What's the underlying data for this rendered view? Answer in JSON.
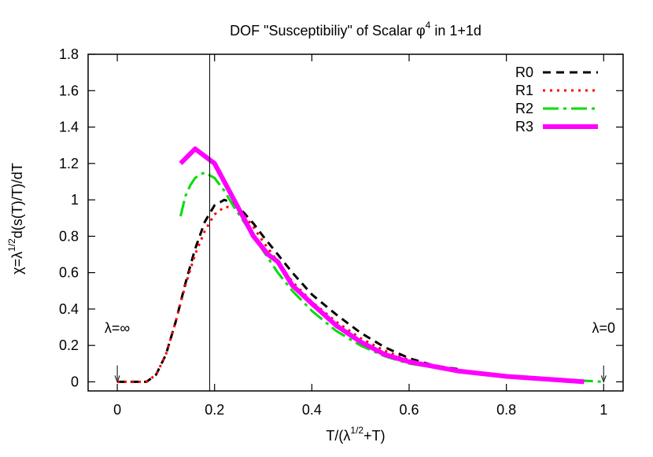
{
  "chart_data": {
    "type": "line",
    "title_parts": [
      "DOF \"Susceptibiliy\" of Scalar ",
      "φ",
      "4",
      " in 1+1d"
    ],
    "xlabel_parts": [
      "T/(λ",
      "1/2",
      "+T)"
    ],
    "ylabel_parts": [
      "χ=λ",
      "1/2",
      "d(s(T)/T)/dT"
    ],
    "xlim": [
      -0.06,
      1.04
    ],
    "ylim": [
      -0.05,
      1.8
    ],
    "xticks": [
      0,
      0.2,
      0.4,
      0.6,
      0.8,
      1
    ],
    "xtick_labels": [
      "0",
      "0.2",
      "0.4",
      "0.6",
      "0.8",
      "1"
    ],
    "yticks": [
      0,
      0.2,
      0.4,
      0.6,
      0.8,
      1,
      1.2,
      1.4,
      1.6,
      1.8
    ],
    "ytick_labels": [
      "0",
      "0.2",
      "0.4",
      "0.6",
      "0.8",
      "1",
      "1.2",
      "1.4",
      "1.6",
      "1.8"
    ],
    "vertical_line_x": 0.19,
    "annotations": [
      {
        "label": "λ=∞",
        "x": 0,
        "y": 0.27,
        "arrow_from": 0.09,
        "arrow_to": 0.0
      },
      {
        "label": "λ=0",
        "x": 1,
        "y": 0.27,
        "arrow_from": 0.09,
        "arrow_to": 0.0
      }
    ],
    "legend_position": "top-right",
    "series": [
      {
        "name": "R0",
        "color": "#000000",
        "dash": "10,7",
        "width": 3,
        "x": [
          0,
          0.06,
          0.08,
          0.1,
          0.12,
          0.14,
          0.16,
          0.18,
          0.2,
          0.22,
          0.24,
          0.26,
          0.28,
          0.3,
          0.33,
          0.36,
          0.4,
          0.45,
          0.5,
          0.55,
          0.6,
          0.65,
          0.7
        ],
        "y": [
          0,
          0.0,
          0.04,
          0.15,
          0.33,
          0.54,
          0.73,
          0.88,
          0.97,
          1.0,
          0.98,
          0.93,
          0.87,
          0.8,
          0.7,
          0.6,
          0.48,
          0.37,
          0.27,
          0.19,
          0.13,
          0.09,
          0.07
        ]
      },
      {
        "name": "R1",
        "color": "#ff0000",
        "dash": "3,6",
        "width": 3,
        "x": [
          0,
          0.06,
          0.08,
          0.1,
          0.12,
          0.14,
          0.16,
          0.18,
          0.2,
          0.22,
          0.24,
          0.26,
          0.28,
          0.3,
          0.33,
          0.36,
          0.4,
          0.45,
          0.5,
          0.55,
          0.6,
          0.65
        ],
        "y": [
          0,
          0.0,
          0.04,
          0.15,
          0.33,
          0.53,
          0.7,
          0.83,
          0.92,
          0.96,
          0.96,
          0.92,
          0.85,
          0.77,
          0.66,
          0.55,
          0.44,
          0.33,
          0.24,
          0.17,
          0.12,
          0.08
        ]
      },
      {
        "name": "R2",
        "color": "#00dd00",
        "dash": "20,6,4,6",
        "width": 3,
        "x": [
          0.13,
          0.14,
          0.15,
          0.16,
          0.17,
          0.18,
          0.2,
          0.22,
          0.24,
          0.26,
          0.28,
          0.3,
          0.33,
          0.36,
          0.4,
          0.45,
          0.5,
          0.55,
          0.6,
          0.7,
          0.8,
          0.9,
          1.0
        ],
        "y": [
          0.91,
          1.02,
          1.08,
          1.12,
          1.14,
          1.15,
          1.12,
          1.05,
          0.96,
          0.88,
          0.8,
          0.72,
          0.6,
          0.5,
          0.39,
          0.28,
          0.2,
          0.14,
          0.1,
          0.06,
          0.035,
          0.015,
          0.0
        ]
      },
      {
        "name": "R3",
        "color": "#ff00ff",
        "dash": "",
        "width": 6,
        "x": [
          0.13,
          0.16,
          0.2,
          0.22,
          0.25,
          0.28,
          0.31,
          0.33,
          0.36,
          0.4,
          0.45,
          0.5,
          0.55,
          0.6,
          0.7,
          0.8,
          0.9,
          0.96
        ],
        "y": [
          1.2,
          1.28,
          1.2,
          1.1,
          0.95,
          0.8,
          0.7,
          0.66,
          0.53,
          0.43,
          0.31,
          0.22,
          0.15,
          0.11,
          0.06,
          0.03,
          0.012,
          0.0
        ]
      }
    ]
  }
}
